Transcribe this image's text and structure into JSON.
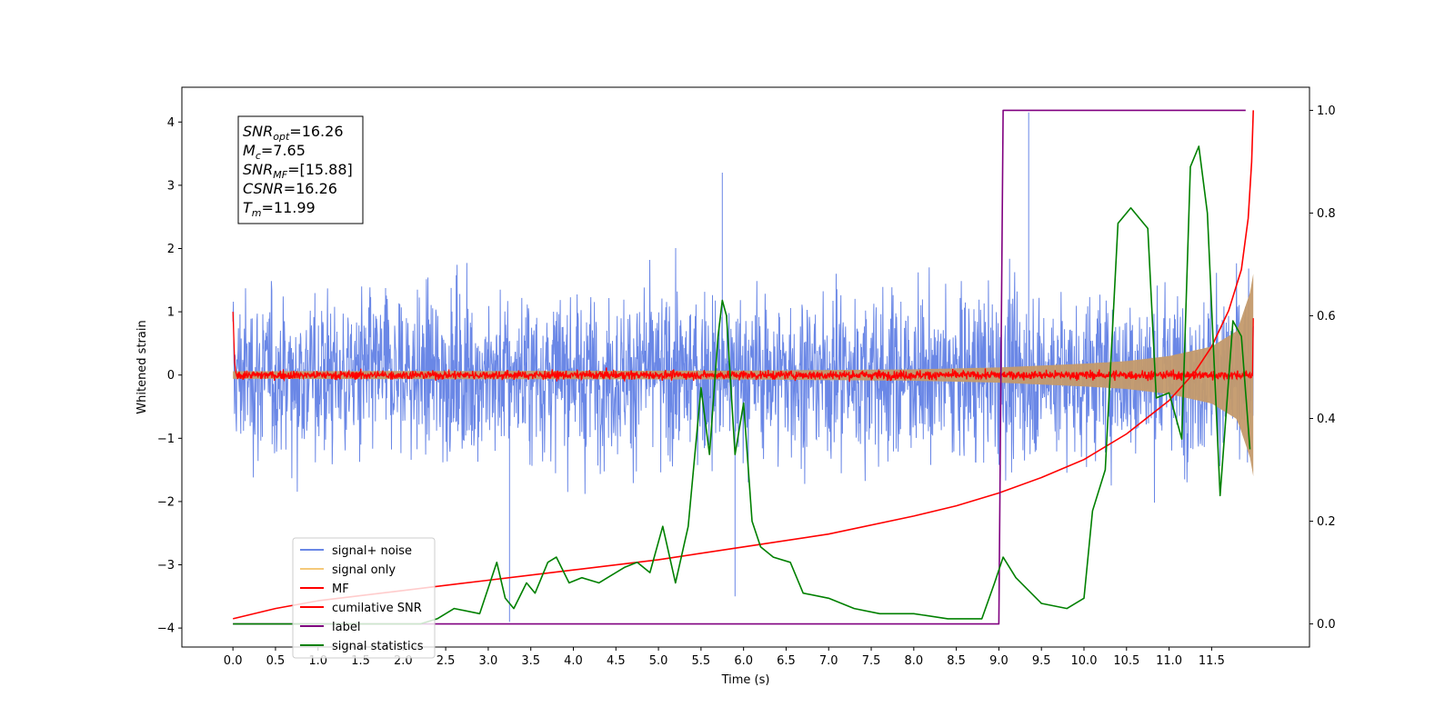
{
  "chart_data": {
    "type": "line",
    "xlabel": "Time (s)",
    "ylabel_left": "Whitened strain",
    "xlim": [
      -0.6,
      12.65
    ],
    "ylim_left": [
      -4.3,
      4.55
    ],
    "ylim_right": [
      -0.045,
      1.045
    ],
    "x_ticks": [
      0.0,
      0.5,
      1.0,
      1.5,
      2.0,
      2.5,
      3.0,
      3.5,
      4.0,
      4.5,
      5.0,
      5.5,
      6.0,
      6.5,
      7.0,
      7.5,
      8.0,
      8.5,
      9.0,
      9.5,
      10.0,
      10.5,
      11.0,
      11.5
    ],
    "x_tick_labels": [
      "0.0",
      "0.5",
      "1.0",
      "1.5",
      "2.0",
      "2.5",
      "3.0",
      "3.5",
      "4.0",
      "4.5",
      "5.0",
      "5.5",
      "6.0",
      "6.5",
      "7.0",
      "7.5",
      "8.0",
      "8.5",
      "9.0",
      "9.5",
      "10.0",
      "10.5",
      "11.0",
      "11.5"
    ],
    "y_left_ticks": [
      -4,
      -3,
      -2,
      -1,
      0,
      1,
      2,
      3,
      4
    ],
    "y_left_tick_labels": [
      "−4",
      "−3",
      "−2",
      "−1",
      "0",
      "1",
      "2",
      "3",
      "4"
    ],
    "y_right_ticks": [
      0.0,
      0.2,
      0.4,
      0.6,
      0.8,
      1.0
    ],
    "y_right_tick_labels": [
      "0.0",
      "0.2",
      "0.4",
      "0.6",
      "0.8",
      "1.0"
    ],
    "legend_position": "lower-left",
    "annotation": [
      {
        "name": "SNR",
        "sub": "opt",
        "value": "=16.26"
      },
      {
        "name": "M",
        "sub": "c",
        "value": "=7.65"
      },
      {
        "name": "SNR",
        "sub": "MF",
        "value": "=[15.88]"
      },
      {
        "name": "CSNR",
        "sub": "",
        "value": "=16.26"
      },
      {
        "name": "T",
        "sub": "m",
        "value": "=11.99"
      }
    ],
    "series": [
      {
        "name": "signal+ noise",
        "axis": "left",
        "color": "#6a87e6",
        "kind": "noise",
        "x_range": [
          0.0,
          11.99
        ],
        "amplitude_approx": 2.3,
        "peak_values": [
          {
            "x": 5.75,
            "y": 3.2
          },
          {
            "x": 9.35,
            "y": 4.15
          },
          {
            "x": 3.25,
            "y": -3.9
          },
          {
            "x": 5.9,
            "y": -3.5
          }
        ]
      },
      {
        "name": "signal only",
        "axis": "left",
        "color": "#f5c97a",
        "kind": "chirp",
        "x_range": [
          0.0,
          11.99
        ],
        "envelope": [
          [
            0.0,
            0.06
          ],
          [
            6.0,
            0.07
          ],
          [
            8.0,
            0.09
          ],
          [
            9.0,
            0.12
          ],
          [
            10.0,
            0.18
          ],
          [
            10.5,
            0.22
          ],
          [
            11.0,
            0.3
          ],
          [
            11.5,
            0.45
          ],
          [
            11.8,
            0.7
          ],
          [
            11.95,
            1.3
          ],
          [
            11.99,
            1.6
          ]
        ]
      },
      {
        "name": "MF",
        "axis": "left",
        "color": "#ff0000",
        "kind": "noise",
        "x_range": [
          0.0,
          11.99
        ],
        "amplitude_approx": 0.07,
        "points": [
          [
            0.0,
            1.0
          ],
          [
            0.02,
            0.2
          ],
          [
            11.98,
            0.0
          ],
          [
            11.99,
            0.9
          ]
        ]
      },
      {
        "name": "cumilative SNR",
        "axis": "right",
        "color": "#ff0000",
        "kind": "line",
        "points": [
          [
            0.0,
            0.01
          ],
          [
            0.5,
            0.03
          ],
          [
            1.0,
            0.045
          ],
          [
            2.0,
            0.065
          ],
          [
            3.0,
            0.085
          ],
          [
            4.0,
            0.105
          ],
          [
            5.0,
            0.125
          ],
          [
            6.0,
            0.15
          ],
          [
            7.0,
            0.175
          ],
          [
            8.0,
            0.21
          ],
          [
            8.5,
            0.23
          ],
          [
            9.0,
            0.255
          ],
          [
            9.5,
            0.285
          ],
          [
            10.0,
            0.32
          ],
          [
            10.5,
            0.37
          ],
          [
            11.0,
            0.435
          ],
          [
            11.3,
            0.49
          ],
          [
            11.5,
            0.54
          ],
          [
            11.7,
            0.61
          ],
          [
            11.85,
            0.69
          ],
          [
            11.93,
            0.79
          ],
          [
            11.97,
            0.9
          ],
          [
            11.99,
            1.0
          ]
        ]
      },
      {
        "name": "label",
        "axis": "right",
        "color": "#800080",
        "kind": "line",
        "points": [
          [
            0.0,
            0.0
          ],
          [
            9.0,
            0.0
          ],
          [
            9.05,
            1.0
          ],
          [
            11.9,
            1.0
          ]
        ]
      },
      {
        "name": "signal statistics",
        "axis": "right",
        "color": "#008000",
        "kind": "line",
        "points": [
          [
            0.0,
            0.0
          ],
          [
            2.2,
            0.0
          ],
          [
            2.4,
            0.01
          ],
          [
            2.6,
            0.03
          ],
          [
            2.9,
            0.02
          ],
          [
            3.1,
            0.12
          ],
          [
            3.2,
            0.05
          ],
          [
            3.3,
            0.03
          ],
          [
            3.45,
            0.08
          ],
          [
            3.55,
            0.06
          ],
          [
            3.7,
            0.12
          ],
          [
            3.8,
            0.13
          ],
          [
            3.95,
            0.08
          ],
          [
            4.1,
            0.09
          ],
          [
            4.3,
            0.08
          ],
          [
            4.6,
            0.11
          ],
          [
            4.75,
            0.12
          ],
          [
            4.9,
            0.1
          ],
          [
            5.05,
            0.19
          ],
          [
            5.2,
            0.08
          ],
          [
            5.35,
            0.19
          ],
          [
            5.5,
            0.46
          ],
          [
            5.6,
            0.33
          ],
          [
            5.7,
            0.56
          ],
          [
            5.75,
            0.63
          ],
          [
            5.8,
            0.6
          ],
          [
            5.9,
            0.33
          ],
          [
            6.0,
            0.43
          ],
          [
            6.1,
            0.2
          ],
          [
            6.2,
            0.15
          ],
          [
            6.35,
            0.13
          ],
          [
            6.55,
            0.12
          ],
          [
            6.7,
            0.06
          ],
          [
            7.0,
            0.05
          ],
          [
            7.3,
            0.03
          ],
          [
            7.6,
            0.02
          ],
          [
            8.0,
            0.02
          ],
          [
            8.4,
            0.01
          ],
          [
            8.8,
            0.01
          ],
          [
            8.95,
            0.08
          ],
          [
            9.05,
            0.13
          ],
          [
            9.2,
            0.09
          ],
          [
            9.5,
            0.04
          ],
          [
            9.8,
            0.03
          ],
          [
            10.0,
            0.05
          ],
          [
            10.1,
            0.22
          ],
          [
            10.25,
            0.3
          ],
          [
            10.4,
            0.78
          ],
          [
            10.55,
            0.81
          ],
          [
            10.75,
            0.77
          ],
          [
            10.85,
            0.44
          ],
          [
            11.0,
            0.45
          ],
          [
            11.15,
            0.36
          ],
          [
            11.25,
            0.89
          ],
          [
            11.35,
            0.93
          ],
          [
            11.45,
            0.8
          ],
          [
            11.6,
            0.25
          ],
          [
            11.75,
            0.59
          ],
          [
            11.85,
            0.56
          ],
          [
            11.95,
            0.34
          ]
        ]
      }
    ]
  }
}
